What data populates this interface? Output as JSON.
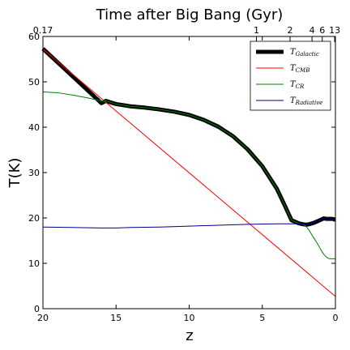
{
  "chart_data": {
    "type": "line",
    "title": "Time after Big Bang (Gyr)",
    "xlabel": "z",
    "ylabel": "T(K)",
    "xlim": [
      20,
      0
    ],
    "ylim": [
      0,
      60
    ],
    "x_ticks": [
      20,
      15,
      10,
      5,
      0
    ],
    "y_ticks": [
      0,
      10,
      20,
      30,
      40,
      50,
      60
    ],
    "top_axis": {
      "label": "Time after Big Bang (Gyr)",
      "ticks": [
        {
          "label": "0.17",
          "z": 20
        },
        {
          "label": "1",
          "z": 5.4
        },
        {
          "label": "2",
          "z": 3.1
        },
        {
          "label": "4",
          "z": 1.6
        },
        {
          "label": "6",
          "z": 0.9
        },
        {
          "label": "13",
          "z": 0.05
        }
      ]
    },
    "grid": false,
    "legend_position": "top-right",
    "series": [
      {
        "name": "T_Galactic",
        "label_main": "T",
        "label_sub": "Galactic",
        "color": "#000000",
        "style": "thick",
        "x": [
          20,
          19,
          18,
          17,
          16,
          15.7,
          15,
          14,
          13,
          12,
          11,
          10,
          9,
          8,
          7,
          6,
          5,
          4,
          3.5,
          3,
          2.5,
          2.2,
          2.0,
          1.8,
          1.5,
          1.2,
          1.0,
          0.8,
          0.6,
          0.4,
          0.2,
          0
        ],
        "y": [
          57.3,
          54.3,
          51.3,
          48.3,
          45.3,
          45.8,
          45.1,
          44.6,
          44.3,
          43.9,
          43.4,
          42.7,
          41.6,
          40.1,
          38.0,
          35.1,
          31.4,
          26.4,
          23.0,
          19.5,
          18.8,
          18.6,
          18.5,
          18.6,
          18.9,
          19.3,
          19.6,
          19.9,
          19.8,
          19.8,
          19.8,
          19.6
        ]
      },
      {
        "name": "T_CMB",
        "label_main": "T",
        "label_sub": "CMB",
        "color": "#ff0000",
        "style": "thin",
        "x": [
          20,
          0
        ],
        "y": [
          57.2,
          2.7
        ]
      },
      {
        "name": "T_CR",
        "label_main": "T",
        "label_sub": "CR",
        "color": "#008000",
        "style": "thin",
        "x": [
          20,
          19,
          18,
          17,
          16,
          15.7,
          15,
          14,
          13,
          12,
          11,
          10,
          9,
          8,
          7,
          6,
          5,
          4,
          3.5,
          3,
          2.5,
          2.2,
          2.0,
          1.8,
          1.5,
          1.2,
          1.0,
          0.8,
          0.6,
          0.4,
          0.2,
          0
        ],
        "y": [
          47.8,
          47.6,
          47.1,
          46.5,
          45.8,
          45.8,
          45.1,
          44.6,
          44.3,
          43.9,
          43.4,
          42.7,
          41.6,
          40.1,
          38.0,
          35.1,
          31.4,
          26.4,
          23.0,
          19.5,
          18.8,
          18.6,
          18.1,
          17.3,
          15.7,
          14.2,
          13.0,
          12.0,
          11.3,
          11.0,
          11.0,
          11.0
        ]
      },
      {
        "name": "T_Radiative",
        "label_main": "T",
        "label_sub": "Radiative",
        "color": "#00008b",
        "style": "thin",
        "x": [
          20,
          18,
          16,
          15,
          14,
          12,
          10,
          8,
          6,
          4,
          3,
          2.2,
          2.0,
          1.8,
          1.5,
          1.2,
          1.0,
          0.8,
          0.6,
          0.4,
          0.2,
          0
        ],
        "y": [
          18.0,
          17.9,
          17.8,
          17.8,
          17.9,
          18.0,
          18.2,
          18.4,
          18.6,
          18.7,
          18.7,
          18.7,
          18.6,
          18.7,
          19.0,
          19.3,
          19.6,
          19.8,
          19.9,
          19.8,
          19.6,
          19.5
        ]
      }
    ]
  }
}
